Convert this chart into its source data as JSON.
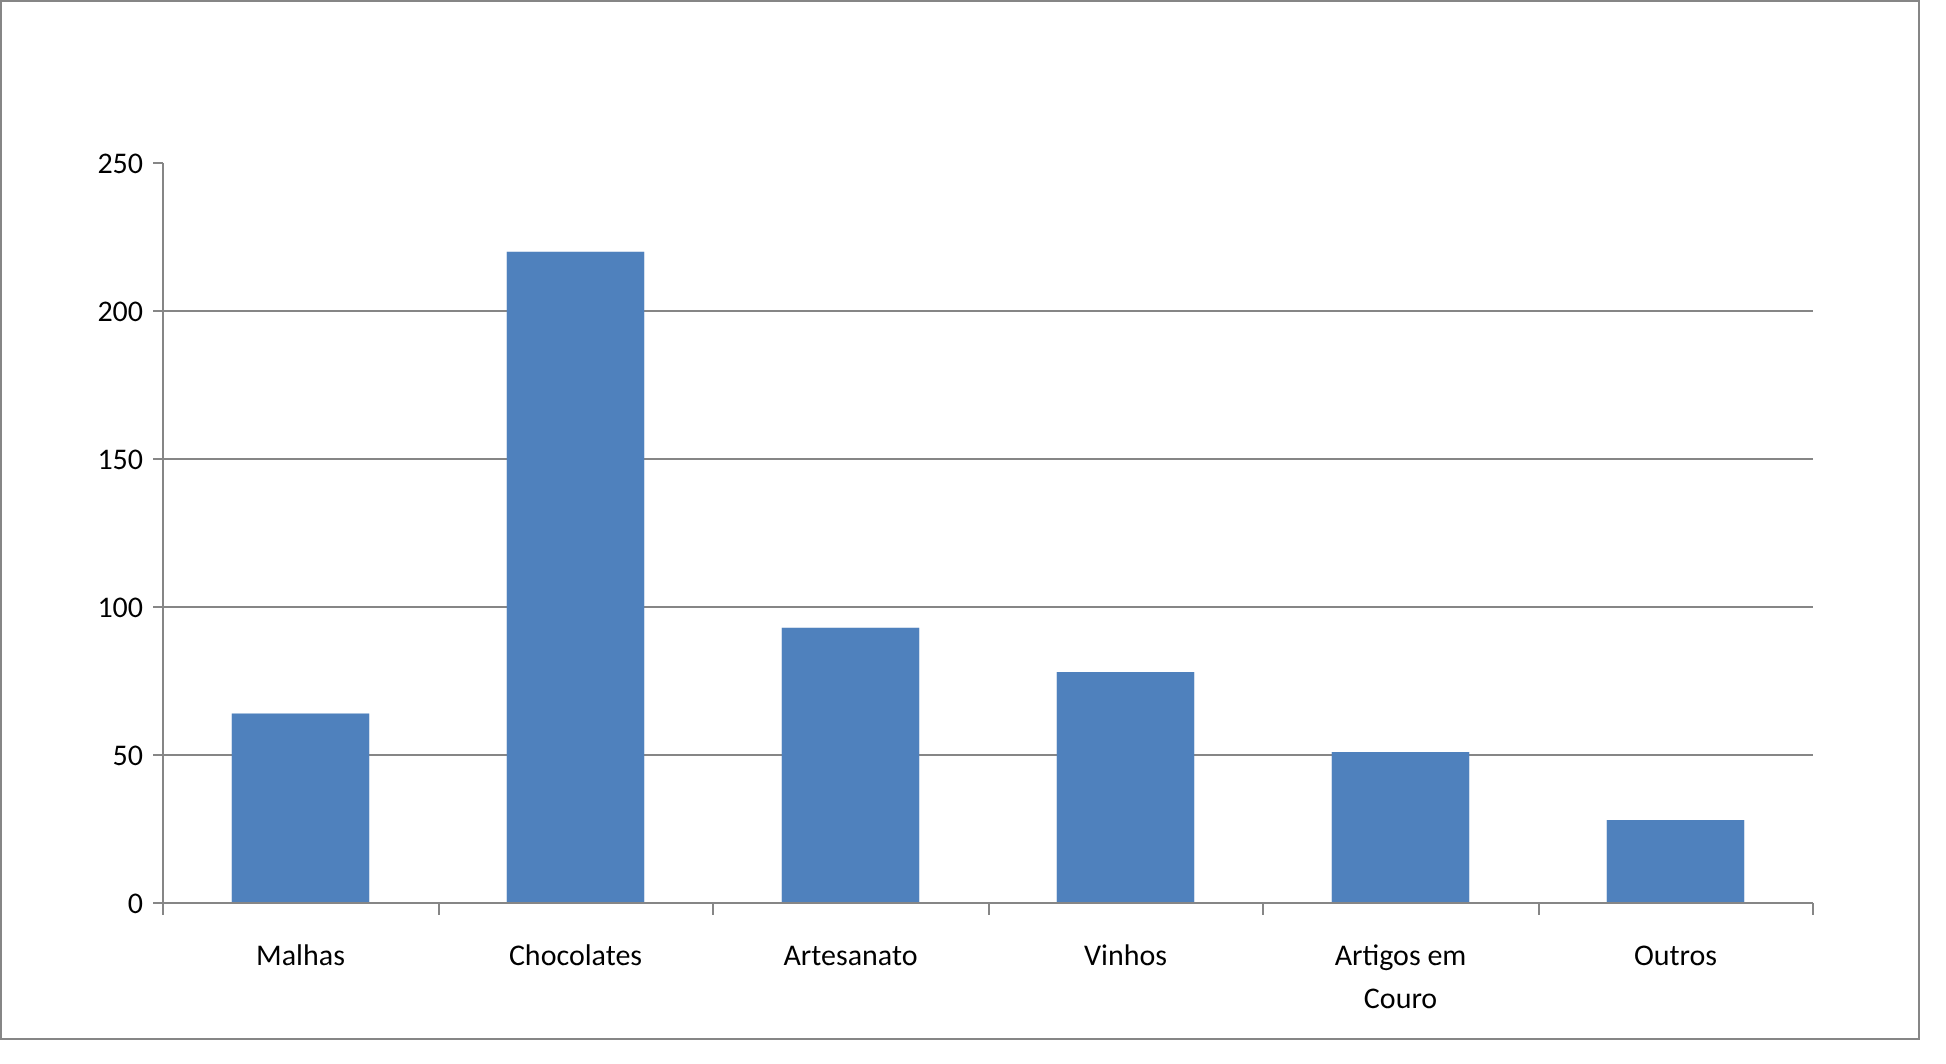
{
  "chart_data": {
    "type": "bar",
    "categories": [
      "Malhas",
      "Chocolates",
      "Artesanato",
      "Vinhos",
      "Artigos em Couro",
      "Outros"
    ],
    "values": [
      64,
      220,
      93,
      78,
      51,
      28
    ],
    "color": "#4f81bd",
    "ylim": [
      0,
      250
    ],
    "yticks": [
      0,
      50,
      100,
      150,
      200,
      250
    ],
    "grid": "y"
  }
}
